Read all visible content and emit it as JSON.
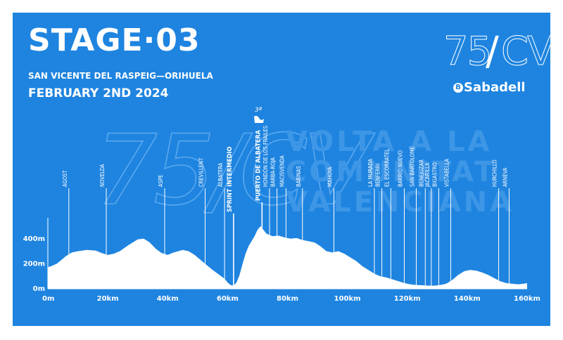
{
  "stage": {
    "title": "STAGE·03",
    "route": "SAN VICENTE DEL RASPEIG—ORIHUELA",
    "date": "FEBRUARY 2ND 2024"
  },
  "logo": {
    "number": "75",
    "separator": "/",
    "letters": "CV",
    "sponsor_icon": "B",
    "sponsor": "Sabadell"
  },
  "watermark": {
    "mark": "75/CV",
    "lines": [
      "VOLTA A LA",
      "COMUNITAT",
      "VALENCIANA"
    ]
  },
  "colors": {
    "background": "#1e84e0",
    "profile": "#ffffff",
    "watermark": "#3d96e6"
  },
  "climb": {
    "category": "3ª",
    "icon": "climb-category-icon"
  },
  "chart_data": {
    "type": "area",
    "xlabel": "",
    "ylabel": "",
    "xlim": [
      0,
      160
    ],
    "ylim": [
      0,
      500
    ],
    "x_ticks": [
      {
        "value": 0,
        "label": "0m"
      },
      {
        "value": 20,
        "label": "20km"
      },
      {
        "value": 40,
        "label": "40km"
      },
      {
        "value": 60,
        "label": "60km"
      },
      {
        "value": 80,
        "label": "80km"
      },
      {
        "value": 100,
        "label": "100km"
      },
      {
        "value": 120,
        "label": "120km"
      },
      {
        "value": 140,
        "label": "140km"
      },
      {
        "value": 160,
        "label": "160km"
      }
    ],
    "y_ticks": [
      {
        "value": 0,
        "label": "0m"
      },
      {
        "value": 200,
        "label": "200m"
      },
      {
        "value": 400,
        "label": "400m"
      }
    ],
    "profile": [
      [
        0,
        170
      ],
      [
        3,
        200
      ],
      [
        6,
        260
      ],
      [
        8,
        290
      ],
      [
        10,
        300
      ],
      [
        13,
        310
      ],
      [
        16,
        305
      ],
      [
        18,
        285
      ],
      [
        20,
        270
      ],
      [
        22,
        280
      ],
      [
        24,
        300
      ],
      [
        27,
        350
      ],
      [
        30,
        395
      ],
      [
        32,
        400
      ],
      [
        34,
        370
      ],
      [
        36,
        320
      ],
      [
        38,
        285
      ],
      [
        40,
        270
      ],
      [
        42,
        290
      ],
      [
        45,
        310
      ],
      [
        47,
        300
      ],
      [
        49,
        270
      ],
      [
        51,
        230
      ],
      [
        53,
        190
      ],
      [
        55,
        150
      ],
      [
        57,
        115
      ],
      [
        59,
        80
      ],
      [
        60,
        50
      ],
      [
        61,
        30
      ],
      [
        62,
        25
      ],
      [
        63,
        50
      ],
      [
        64,
        110
      ],
      [
        65,
        200
      ],
      [
        66,
        280
      ],
      [
        67,
        340
      ],
      [
        68,
        380
      ],
      [
        69,
        420
      ],
      [
        70,
        470
      ],
      [
        71,
        500
      ],
      [
        72,
        470
      ],
      [
        73,
        440
      ],
      [
        75,
        420
      ],
      [
        77,
        425
      ],
      [
        79,
        410
      ],
      [
        81,
        400
      ],
      [
        83,
        405
      ],
      [
        85,
        390
      ],
      [
        87,
        380
      ],
      [
        89,
        370
      ],
      [
        91,
        340
      ],
      [
        93,
        300
      ],
      [
        95,
        290
      ],
      [
        97,
        300
      ],
      [
        99,
        280
      ],
      [
        101,
        250
      ],
      [
        103,
        220
      ],
      [
        105,
        180
      ],
      [
        107,
        150
      ],
      [
        109,
        120
      ],
      [
        111,
        100
      ],
      [
        113,
        90
      ],
      [
        115,
        75
      ],
      [
        117,
        60
      ],
      [
        119,
        45
      ],
      [
        121,
        35
      ],
      [
        123,
        30
      ],
      [
        125,
        28
      ],
      [
        127,
        25
      ],
      [
        129,
        25
      ],
      [
        131,
        30
      ],
      [
        133,
        40
      ],
      [
        135,
        70
      ],
      [
        137,
        110
      ],
      [
        139,
        140
      ],
      [
        141,
        150
      ],
      [
        143,
        145
      ],
      [
        145,
        130
      ],
      [
        147,
        110
      ],
      [
        149,
        85
      ],
      [
        151,
        60
      ],
      [
        153,
        45
      ],
      [
        155,
        40
      ],
      [
        157,
        35
      ],
      [
        159,
        40
      ],
      [
        160,
        45
      ]
    ],
    "waypoints": [
      {
        "km": 7,
        "label": "AGOST",
        "bold": false
      },
      {
        "km": 19.5,
        "label": "NOVELDA",
        "bold": false
      },
      {
        "km": 39,
        "label": "ASPE",
        "bold": false
      },
      {
        "km": 52.5,
        "label": "CREVILLENT",
        "bold": false
      },
      {
        "km": 59,
        "label": "ALBATERA",
        "bold": false
      },
      {
        "km": 62,
        "label": "SPRINT INTERMEDIO",
        "bold": true
      },
      {
        "km": 71.5,
        "label": "PUERTO DE ALBATERA",
        "bold": true
      },
      {
        "km": 74,
        "label": "HONDÓN DE LOS FRAILES",
        "bold": false
      },
      {
        "km": 76.5,
        "label": "BARBA-ROJA",
        "bold": false
      },
      {
        "km": 79.5,
        "label": "MACISVENDA",
        "bold": false
      },
      {
        "km": 85,
        "label": "BARINAS",
        "bold": false
      },
      {
        "km": 95.5,
        "label": "MAHOYA",
        "bold": false
      },
      {
        "km": 109,
        "label": "LA MURADA",
        "bold": false
      },
      {
        "km": 111.5,
        "label": "BENFERRI",
        "bold": false
      },
      {
        "km": 114.5,
        "label": "EL ESCORRATEL",
        "bold": false
      },
      {
        "km": 119,
        "label": "BARRIO NUEVO",
        "bold": false
      },
      {
        "km": 123,
        "label": "SAN BARTOLOMÉ",
        "bold": false
      },
      {
        "km": 126,
        "label": "BENEJÚZAR",
        "bold": false
      },
      {
        "km": 128,
        "label": "JACARILLA",
        "bold": false
      },
      {
        "km": 130.5,
        "label": "BIGASTRO",
        "bold": false
      },
      {
        "km": 134.5,
        "label": "VISTABELLA",
        "bold": false
      },
      {
        "km": 150.5,
        "label": "HURCHILLO",
        "bold": false
      },
      {
        "km": 154,
        "label": "ARNEVA",
        "bold": false
      }
    ]
  }
}
